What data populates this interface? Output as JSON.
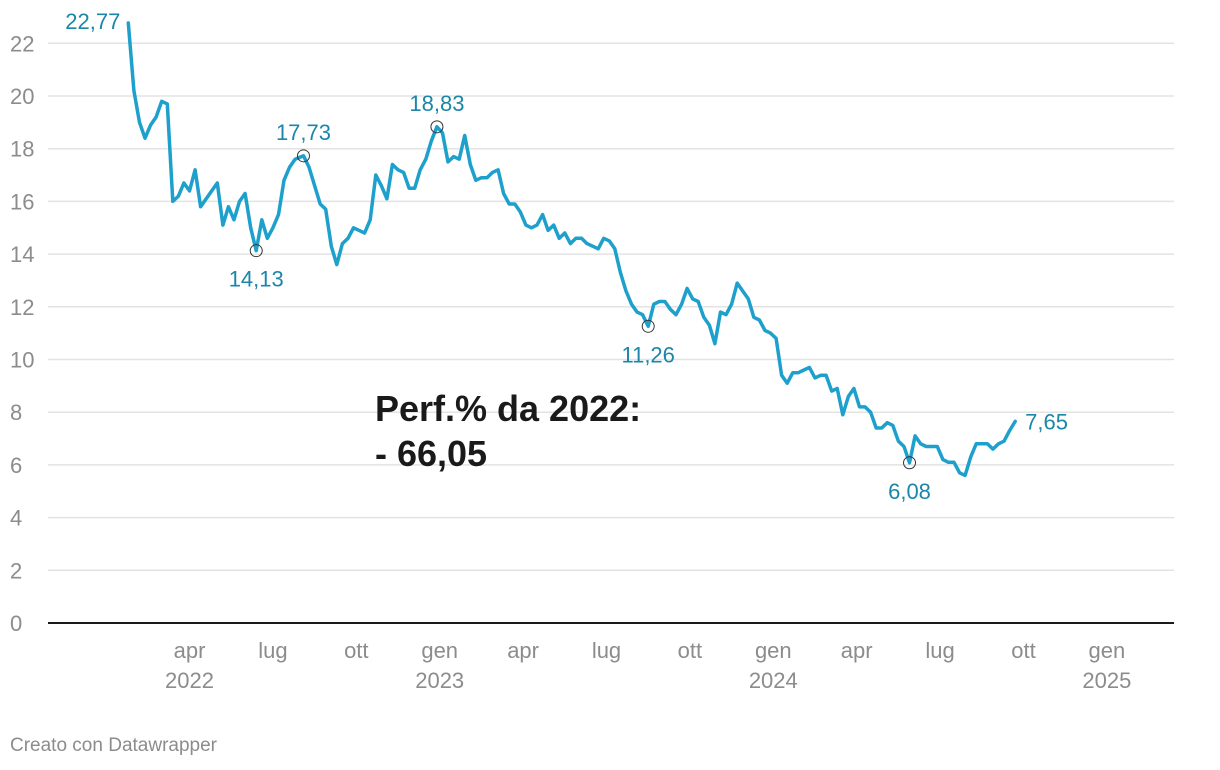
{
  "chart_data": {
    "type": "line",
    "ylim": [
      0,
      23
    ],
    "yticks": [
      0,
      2,
      4,
      6,
      8,
      10,
      12,
      14,
      16,
      18,
      20,
      22
    ],
    "ytick_labels": [
      "0",
      "2",
      "4",
      "6",
      "8",
      "10",
      "12",
      "14",
      "16",
      "18",
      "20",
      "22"
    ],
    "x_axis": [
      {
        "month": "apr",
        "year": "2022",
        "t": 2.5
      },
      {
        "month": "lug",
        "year": "",
        "t": 5.5
      },
      {
        "month": "ott",
        "year": "",
        "t": 8.5
      },
      {
        "month": "gen",
        "year": "2023",
        "t": 11.5
      },
      {
        "month": "apr",
        "year": "",
        "t": 14.5
      },
      {
        "month": "lug",
        "year": "",
        "t": 17.5
      },
      {
        "month": "ott",
        "year": "",
        "t": 20.5
      },
      {
        "month": "gen",
        "year": "2024",
        "t": 23.5
      },
      {
        "month": "apr",
        "year": "",
        "t": 26.5
      },
      {
        "month": "lug",
        "year": "",
        "t": 29.5
      },
      {
        "month": "ott",
        "year": "",
        "t": 32.5
      },
      {
        "month": "gen",
        "year": "2025",
        "t": 35.5
      }
    ],
    "series": [
      {
        "name": "Prezzo",
        "points": [
          [
            0.3,
            22.77
          ],
          [
            0.5,
            20.2
          ],
          [
            0.7,
            19.0
          ],
          [
            0.9,
            18.4
          ],
          [
            1.1,
            18.9
          ],
          [
            1.3,
            19.2
          ],
          [
            1.5,
            19.8
          ],
          [
            1.7,
            19.7
          ],
          [
            1.9,
            16.0
          ],
          [
            2.1,
            16.2
          ],
          [
            2.3,
            16.7
          ],
          [
            2.5,
            16.4
          ],
          [
            2.7,
            17.2
          ],
          [
            2.9,
            15.8
          ],
          [
            3.1,
            16.1
          ],
          [
            3.3,
            16.4
          ],
          [
            3.5,
            16.7
          ],
          [
            3.7,
            15.1
          ],
          [
            3.9,
            15.8
          ],
          [
            4.1,
            15.3
          ],
          [
            4.3,
            16.0
          ],
          [
            4.5,
            16.3
          ],
          [
            4.7,
            15.0
          ],
          [
            4.9,
            14.13
          ],
          [
            5.1,
            15.3
          ],
          [
            5.3,
            14.6
          ],
          [
            5.5,
            15.0
          ],
          [
            5.7,
            15.5
          ],
          [
            5.9,
            16.8
          ],
          [
            6.1,
            17.3
          ],
          [
            6.3,
            17.6
          ],
          [
            6.6,
            17.73
          ],
          [
            6.8,
            17.3
          ],
          [
            7.0,
            16.6
          ],
          [
            7.2,
            15.9
          ],
          [
            7.4,
            15.7
          ],
          [
            7.6,
            14.3
          ],
          [
            7.8,
            13.6
          ],
          [
            8.0,
            14.4
          ],
          [
            8.2,
            14.6
          ],
          [
            8.4,
            15.0
          ],
          [
            8.6,
            14.9
          ],
          [
            8.8,
            14.8
          ],
          [
            9.0,
            15.3
          ],
          [
            9.2,
            17.0
          ],
          [
            9.4,
            16.6
          ],
          [
            9.6,
            16.1
          ],
          [
            9.8,
            17.4
          ],
          [
            10.0,
            17.2
          ],
          [
            10.2,
            17.1
          ],
          [
            10.4,
            16.5
          ],
          [
            10.6,
            16.5
          ],
          [
            10.8,
            17.2
          ],
          [
            11.0,
            17.6
          ],
          [
            11.2,
            18.3
          ],
          [
            11.4,
            18.83
          ],
          [
            11.6,
            18.6
          ],
          [
            11.8,
            17.5
          ],
          [
            12.0,
            17.7
          ],
          [
            12.2,
            17.6
          ],
          [
            12.4,
            18.5
          ],
          [
            12.6,
            17.4
          ],
          [
            12.8,
            16.8
          ],
          [
            13.0,
            16.9
          ],
          [
            13.2,
            16.9
          ],
          [
            13.4,
            17.1
          ],
          [
            13.6,
            17.2
          ],
          [
            13.8,
            16.3
          ],
          [
            14.0,
            15.9
          ],
          [
            14.2,
            15.9
          ],
          [
            14.4,
            15.6
          ],
          [
            14.6,
            15.1
          ],
          [
            14.8,
            15.0
          ],
          [
            15.0,
            15.1
          ],
          [
            15.2,
            15.5
          ],
          [
            15.4,
            14.9
          ],
          [
            15.6,
            15.1
          ],
          [
            15.8,
            14.6
          ],
          [
            16.0,
            14.8
          ],
          [
            16.2,
            14.4
          ],
          [
            16.4,
            14.6
          ],
          [
            16.6,
            14.6
          ],
          [
            16.8,
            14.4
          ],
          [
            17.0,
            14.3
          ],
          [
            17.2,
            14.2
          ],
          [
            17.4,
            14.6
          ],
          [
            17.6,
            14.5
          ],
          [
            17.8,
            14.2
          ],
          [
            18.0,
            13.3
          ],
          [
            18.2,
            12.6
          ],
          [
            18.4,
            12.1
          ],
          [
            18.6,
            11.8
          ],
          [
            18.8,
            11.7
          ],
          [
            19.0,
            11.26
          ],
          [
            19.2,
            12.1
          ],
          [
            19.4,
            12.2
          ],
          [
            19.6,
            12.2
          ],
          [
            19.8,
            11.9
          ],
          [
            20.0,
            11.7
          ],
          [
            20.2,
            12.1
          ],
          [
            20.4,
            12.7
          ],
          [
            20.6,
            12.3
          ],
          [
            20.8,
            12.2
          ],
          [
            21.0,
            11.6
          ],
          [
            21.2,
            11.3
          ],
          [
            21.4,
            10.6
          ],
          [
            21.6,
            11.8
          ],
          [
            21.8,
            11.7
          ],
          [
            22.0,
            12.1
          ],
          [
            22.2,
            12.9
          ],
          [
            22.4,
            12.6
          ],
          [
            22.6,
            12.3
          ],
          [
            22.8,
            11.6
          ],
          [
            23.0,
            11.5
          ],
          [
            23.2,
            11.1
          ],
          [
            23.4,
            11.0
          ],
          [
            23.6,
            10.8
          ],
          [
            23.8,
            9.4
          ],
          [
            24.0,
            9.1
          ],
          [
            24.2,
            9.5
          ],
          [
            24.4,
            9.5
          ],
          [
            24.6,
            9.6
          ],
          [
            24.8,
            9.7
          ],
          [
            25.0,
            9.3
          ],
          [
            25.2,
            9.4
          ],
          [
            25.4,
            9.4
          ],
          [
            25.6,
            8.8
          ],
          [
            25.8,
            8.9
          ],
          [
            26.0,
            7.9
          ],
          [
            26.2,
            8.6
          ],
          [
            26.4,
            8.9
          ],
          [
            26.6,
            8.2
          ],
          [
            26.8,
            8.2
          ],
          [
            27.0,
            8.0
          ],
          [
            27.2,
            7.4
          ],
          [
            27.4,
            7.4
          ],
          [
            27.6,
            7.6
          ],
          [
            27.8,
            7.5
          ],
          [
            28.0,
            6.9
          ],
          [
            28.2,
            6.7
          ],
          [
            28.4,
            6.08
          ],
          [
            28.6,
            7.1
          ],
          [
            28.8,
            6.8
          ],
          [
            29.0,
            6.7
          ],
          [
            29.2,
            6.7
          ],
          [
            29.4,
            6.7
          ],
          [
            29.6,
            6.2
          ],
          [
            29.8,
            6.1
          ],
          [
            30.0,
            6.1
          ],
          [
            30.2,
            5.7
          ],
          [
            30.4,
            5.6
          ],
          [
            30.6,
            6.3
          ],
          [
            30.8,
            6.8
          ],
          [
            31.0,
            6.8
          ],
          [
            31.2,
            6.8
          ],
          [
            31.4,
            6.6
          ],
          [
            31.6,
            6.8
          ],
          [
            31.8,
            6.9
          ],
          [
            32.0,
            7.3
          ],
          [
            32.2,
            7.65
          ]
        ]
      }
    ],
    "annotations": [
      {
        "t": 0.3,
        "value": 22.77,
        "label": "22,77",
        "anchor": "left",
        "marker": false
      },
      {
        "t": 4.9,
        "value": 14.13,
        "label": "14,13",
        "anchor": "below",
        "marker": true
      },
      {
        "t": 6.6,
        "value": 17.73,
        "label": "17,73",
        "anchor": "above",
        "marker": true
      },
      {
        "t": 11.4,
        "value": 18.83,
        "label": "18,83",
        "anchor": "above",
        "marker": true
      },
      {
        "t": 19.0,
        "value": 11.26,
        "label": "11,26",
        "anchor": "below",
        "marker": true
      },
      {
        "t": 28.4,
        "value": 6.08,
        "label": "6,08",
        "anchor": "below",
        "marker": true
      },
      {
        "t": 32.2,
        "value": 7.65,
        "label": "7,65",
        "anchor": "right",
        "marker": false
      }
    ],
    "performance_text": {
      "line1": "Perf.% da 2022:",
      "line2": "- 66,05"
    }
  },
  "footer": {
    "credit": "Creato con Datawrapper"
  },
  "colors": {
    "line": "#1da0cc",
    "label": "#1b86a8",
    "grid": "#e3e3e3",
    "axis": "#1a1a1a",
    "tick_text": "#8c8c8c"
  }
}
